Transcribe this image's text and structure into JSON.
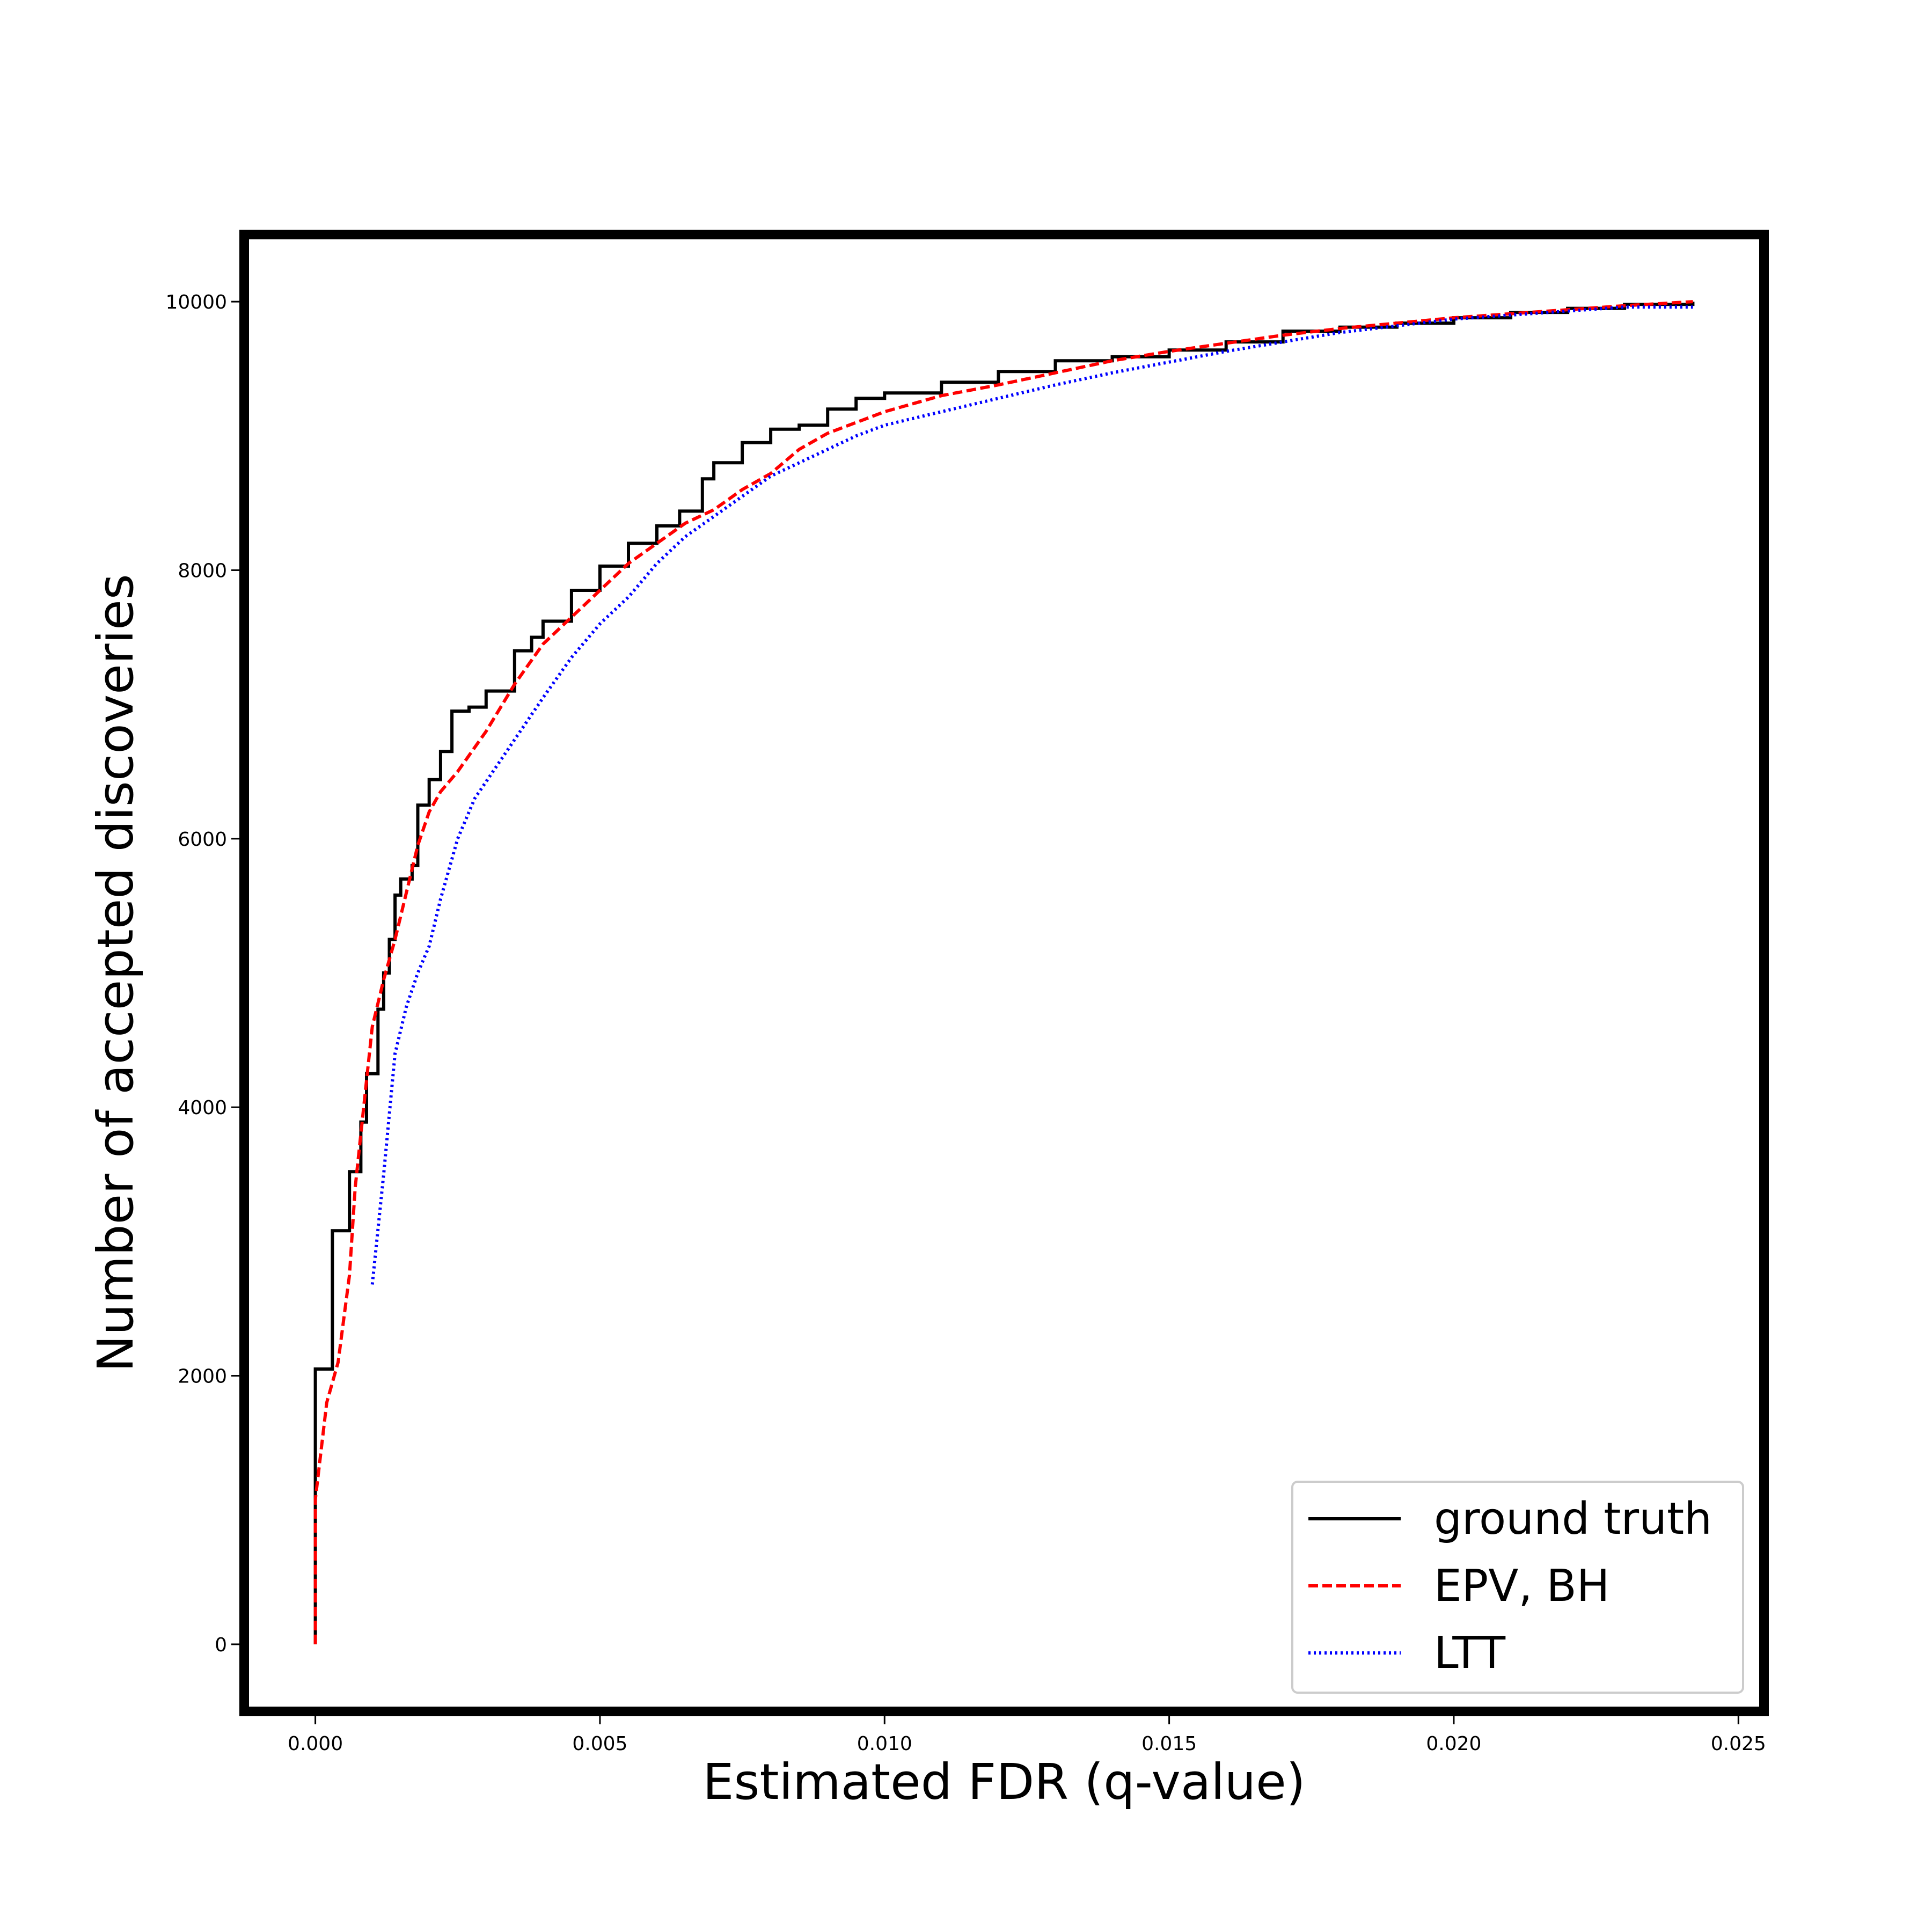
{
  "chart_data": {
    "type": "line",
    "title": "",
    "xlabel": "Estimated FDR (q-value)",
    "ylabel": "Number of accepted discoveries",
    "xlim": [
      -0.00125,
      0.02545
    ],
    "ylim": [
      -500,
      10500
    ],
    "xticks": [
      0.0,
      0.005,
      0.01,
      0.015,
      0.02,
      0.025
    ],
    "xtick_labels": [
      "0.000",
      "0.005",
      "0.010",
      "0.015",
      "0.020",
      "0.025"
    ],
    "yticks": [
      0,
      2000,
      4000,
      6000,
      8000,
      10000
    ],
    "ytick_labels": [
      "0",
      "2000",
      "4000",
      "6000",
      "8000",
      "10000"
    ],
    "grid": false,
    "legend_position": "bottom-right",
    "series": [
      {
        "name": "ground truth",
        "color": "#000000",
        "style": "solid",
        "step": true,
        "x": [
          0.0,
          0.0,
          0.0003,
          0.0006,
          0.0008,
          0.0009,
          0.0011,
          0.0012,
          0.0013,
          0.0014,
          0.0015,
          0.0017,
          0.0018,
          0.002,
          0.0022,
          0.0024,
          0.0027,
          0.003,
          0.0035,
          0.0038,
          0.004,
          0.0045,
          0.005,
          0.0055,
          0.006,
          0.0064,
          0.0068,
          0.007,
          0.0075,
          0.008,
          0.0085,
          0.009,
          0.0095,
          0.01,
          0.011,
          0.012,
          0.013,
          0.014,
          0.015,
          0.016,
          0.017,
          0.018,
          0.019,
          0.02,
          0.021,
          0.022,
          0.023,
          0.0242
        ],
        "y": [
          0,
          2050,
          3080,
          3520,
          3890,
          4250,
          4730,
          5000,
          5250,
          5580,
          5700,
          5800,
          6250,
          6440,
          6650,
          6950,
          6980,
          7100,
          7400,
          7500,
          7620,
          7850,
          8030,
          8200,
          8330,
          8440,
          8680,
          8800,
          8950,
          9050,
          9080,
          9200,
          9280,
          9320,
          9400,
          9480,
          9560,
          9590,
          9640,
          9700,
          9780,
          9810,
          9840,
          9880,
          9920,
          9950,
          9980,
          10000
        ]
      },
      {
        "name": "EPV, BH",
        "color": "#ff0000",
        "style": "dashed",
        "step": false,
        "x": [
          0.0,
          0.0,
          0.0002,
          0.0004,
          0.0006,
          0.0007,
          0.0009,
          0.001,
          0.0012,
          0.0014,
          0.0016,
          0.0018,
          0.002,
          0.0022,
          0.0025,
          0.003,
          0.0035,
          0.004,
          0.0045,
          0.005,
          0.0055,
          0.006,
          0.0065,
          0.007,
          0.0075,
          0.008,
          0.0085,
          0.009,
          0.0095,
          0.01,
          0.011,
          0.012,
          0.013,
          0.014,
          0.015,
          0.016,
          0.017,
          0.018,
          0.019,
          0.02,
          0.021,
          0.022,
          0.023,
          0.0242
        ],
        "y": [
          0,
          1080,
          1800,
          2100,
          2750,
          3400,
          4200,
          4600,
          4950,
          5250,
          5600,
          5950,
          6200,
          6350,
          6500,
          6800,
          7150,
          7450,
          7650,
          7850,
          8050,
          8200,
          8350,
          8450,
          8600,
          8720,
          8900,
          9020,
          9100,
          9180,
          9300,
          9380,
          9470,
          9560,
          9630,
          9690,
          9750,
          9800,
          9840,
          9880,
          9910,
          9940,
          9970,
          10000
        ]
      },
      {
        "name": "LTT",
        "color": "#0000ff",
        "style": "dotted",
        "step": false,
        "x": [
          0.001,
          0.0012,
          0.0014,
          0.0016,
          0.0018,
          0.002,
          0.0022,
          0.0025,
          0.0028,
          0.0032,
          0.0036,
          0.004,
          0.0045,
          0.005,
          0.0055,
          0.006,
          0.0065,
          0.007,
          0.0075,
          0.008,
          0.0085,
          0.009,
          0.0095,
          0.01,
          0.011,
          0.012,
          0.013,
          0.014,
          0.015,
          0.016,
          0.017,
          0.018,
          0.019,
          0.02,
          0.021,
          0.022,
          0.023,
          0.0242
        ],
        "y": [
          2680,
          3500,
          4400,
          4750,
          5000,
          5200,
          5550,
          6000,
          6300,
          6550,
          6800,
          7050,
          7350,
          7600,
          7800,
          8050,
          8250,
          8400,
          8550,
          8700,
          8800,
          8900,
          9000,
          9080,
          9180,
          9280,
          9380,
          9470,
          9550,
          9630,
          9700,
          9770,
          9820,
          9870,
          9900,
          9930,
          9960,
          9960
        ]
      }
    ]
  }
}
